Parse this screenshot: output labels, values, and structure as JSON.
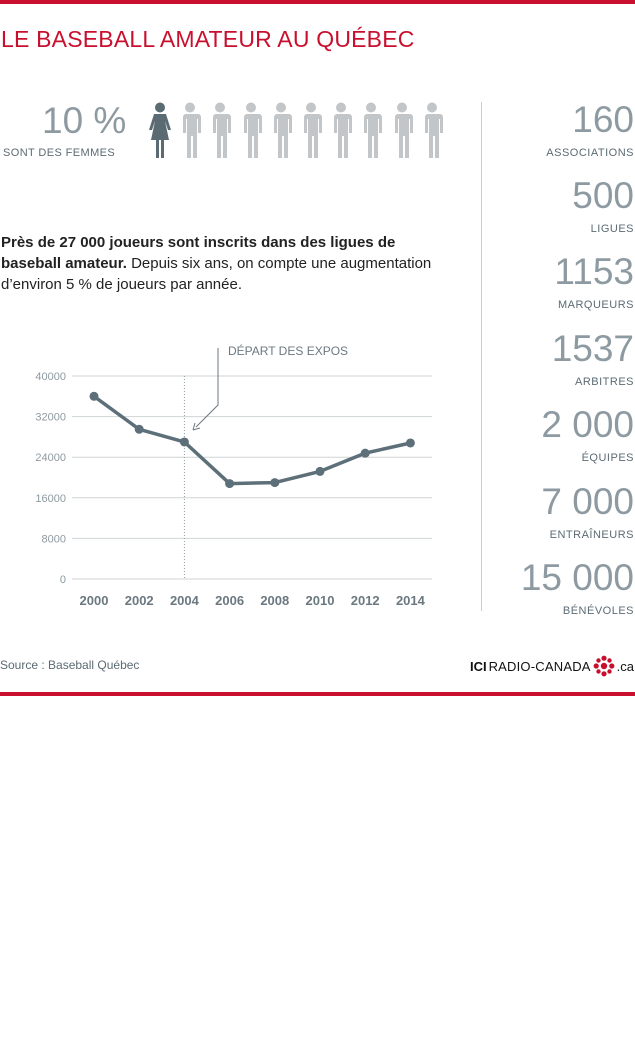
{
  "title": "LE BASEBALL AMATEUR AU QUÉBEC",
  "women": {
    "percent": "10 %",
    "label": "SONT DES FEMMES",
    "highlighted_count": 1,
    "total_figures": 10,
    "colors": {
      "highlight": "#5b6b74",
      "other": "#c3c6c8"
    }
  },
  "intro": {
    "bold": "Près de 27 000 joueurs sont inscrits dans des ligues de baseball amateur.",
    "text": " Depuis six ans, on compte une augmentation d’environ 5 % de joueurs par année."
  },
  "chart_data": {
    "type": "line",
    "title": "",
    "xlabel": "",
    "ylabel": "",
    "x": [
      "2000",
      "2002",
      "2004",
      "2006",
      "2008",
      "2010",
      "2012",
      "2014"
    ],
    "series": [
      {
        "values": [
          36000,
          29500,
          27000,
          18800,
          19000,
          21200,
          24800,
          26800
        ]
      }
    ],
    "ylim": [
      0,
      40000
    ],
    "yticks": [
      "0",
      "8000",
      "16000",
      "24000",
      "32000",
      "40000"
    ],
    "grid": true,
    "annotation": {
      "text": "DÉPART DES EXPOS",
      "x": "2004"
    },
    "colors": {
      "line": "#5d6f78",
      "grid": "#d0d4d6",
      "tick": "#8d9aa1",
      "xtick": "#6b7880"
    }
  },
  "stats": [
    {
      "value": "160",
      "label": "ASSOCIATIONS"
    },
    {
      "value": "500",
      "label": "LIGUES"
    },
    {
      "value": "1153",
      "label": "MARQUEURS"
    },
    {
      "value": "1537",
      "label": "ARBITRES"
    },
    {
      "value": "2 000",
      "label": "ÉQUIPES"
    },
    {
      "value": "7 000",
      "label": "ENTRAÎNEURS"
    },
    {
      "value": "15 000",
      "label": "BÉNÉVOLES"
    }
  ],
  "source": "Source : Baseball Québec",
  "brand": {
    "ici": "ICI",
    "name": "RADIO-CANADA",
    "tld": ".ca",
    "logo_icon": "radio-canada-gem-icon",
    "color": "#c8102e"
  },
  "accent_color": "#c8102e"
}
